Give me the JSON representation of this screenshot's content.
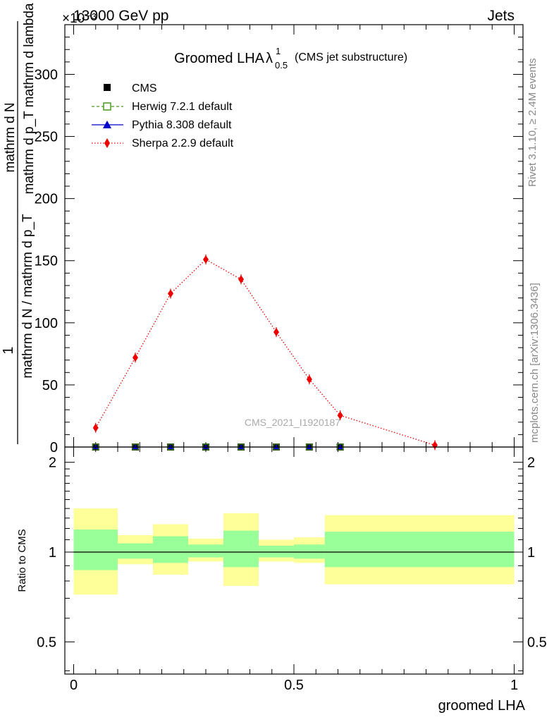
{
  "header": {
    "energy_label": "13000 GeV pp",
    "category_label": "Jets",
    "exponent_label": "×10⁻³"
  },
  "side_labels": {
    "rivet": "Rivet 3.1.10, ≥ 2.4M events",
    "mcplots": "mcplots.cern.ch [arXiv:1306.3436]"
  },
  "watermark": "CMS_2021_I1920187",
  "chart_data": [
    {
      "type": "line",
      "title_main": "Groomed LHA",
      "title_symbol": "λ",
      "title_sup": "1",
      "title_sub": "0.5",
      "title_extra": "(CMS jet substructure)",
      "ylabel_lines": [
        "1",
        "mathrm d N / mathrm d p_T",
        "mathrm d N",
        "mathrm d p_T mathrm d lambda"
      ],
      "ylabel_text": "mathrm d N / mathrm d p_T mathrm d p_T mathrm d lambda",
      "y_multiplier": "×10⁻³",
      "xlim": [
        -0.02,
        1.02
      ],
      "ylim": [
        0,
        340
      ],
      "yticks": [
        0,
        50,
        100,
        150,
        200,
        250,
        300
      ],
      "legend_position": "top-left",
      "legend": [
        {
          "name": "CMS",
          "color": "#000000",
          "marker": "square-filled"
        },
        {
          "name": "Herwig 7.2.1 default",
          "color": "#4a9a1e",
          "marker": "square-open",
          "dash": "dashed"
        },
        {
          "name": "Pythia 8.308 default",
          "color": "#0000cc",
          "marker": "triangle",
          "dash": "solid"
        },
        {
          "name": "Sherpa 2.2.9 default",
          "color": "#ee0000",
          "marker": "diamond",
          "dash": "dotted"
        }
      ],
      "series": [
        {
          "name": "CMS",
          "color": "#000000",
          "x": [
            0.05,
            0.14,
            0.22,
            0.3,
            0.38,
            0.46,
            0.535,
            0.605
          ],
          "y": [
            0,
            0,
            0,
            0,
            0,
            0,
            0,
            0
          ]
        },
        {
          "name": "Herwig 7.2.1 default",
          "color": "#4a9a1e",
          "x": [
            0.05,
            0.14,
            0.22,
            0.3,
            0.38,
            0.46,
            0.535,
            0.605
          ],
          "y": [
            0,
            0,
            0,
            0,
            0,
            0,
            0,
            0
          ]
        },
        {
          "name": "Pythia 8.308 default",
          "color": "#0000cc",
          "x": [
            0.05,
            0.14,
            0.22,
            0.3,
            0.38,
            0.46,
            0.535,
            0.605
          ],
          "y": [
            0,
            0,
            0,
            0,
            0,
            0,
            0,
            0
          ]
        },
        {
          "name": "Sherpa 2.2.9 default",
          "color": "#ee0000",
          "x": [
            0.05,
            0.14,
            0.22,
            0.3,
            0.38,
            0.46,
            0.535,
            0.605,
            0.82
          ],
          "y": [
            15.5,
            72,
            123.5,
            151,
            135,
            92.5,
            54.5,
            25.5,
            1.5
          ]
        }
      ]
    },
    {
      "type": "area",
      "ylabel": "Ratio to CMS",
      "xlabel": "groomed LHA",
      "xlim": [
        -0.02,
        1.02
      ],
      "ylim": [
        0.39,
        2.25
      ],
      "yticks": [
        0.5,
        1,
        2
      ],
      "xticks": [
        0,
        0.5,
        1
      ],
      "reference_line": 1,
      "bins": [
        {
          "x0": 0.0,
          "x1": 0.1,
          "green": [
            0.87,
            1.19
          ],
          "yellow": [
            0.72,
            1.4
          ]
        },
        {
          "x0": 0.1,
          "x1": 0.18,
          "green": [
            0.95,
            1.07
          ],
          "yellow": [
            0.91,
            1.14
          ]
        },
        {
          "x0": 0.18,
          "x1": 0.26,
          "green": [
            0.92,
            1.13
          ],
          "yellow": [
            0.84,
            1.24
          ]
        },
        {
          "x0": 0.26,
          "x1": 0.34,
          "green": [
            0.96,
            1.06
          ],
          "yellow": [
            0.93,
            1.11
          ]
        },
        {
          "x0": 0.34,
          "x1": 0.42,
          "green": [
            0.89,
            1.18
          ],
          "yellow": [
            0.77,
            1.35
          ]
        },
        {
          "x0": 0.42,
          "x1": 0.5,
          "green": [
            0.96,
            1.05
          ],
          "yellow": [
            0.93,
            1.1
          ]
        },
        {
          "x0": 0.5,
          "x1": 0.57,
          "green": [
            0.95,
            1.06
          ],
          "yellow": [
            0.92,
            1.12
          ]
        },
        {
          "x0": 0.57,
          "x1": 1.0,
          "green": [
            0.89,
            1.17
          ],
          "yellow": [
            0.78,
            1.33
          ]
        }
      ],
      "band_colors": {
        "inner": "#99ff99",
        "outer": "#ffff99"
      }
    }
  ]
}
